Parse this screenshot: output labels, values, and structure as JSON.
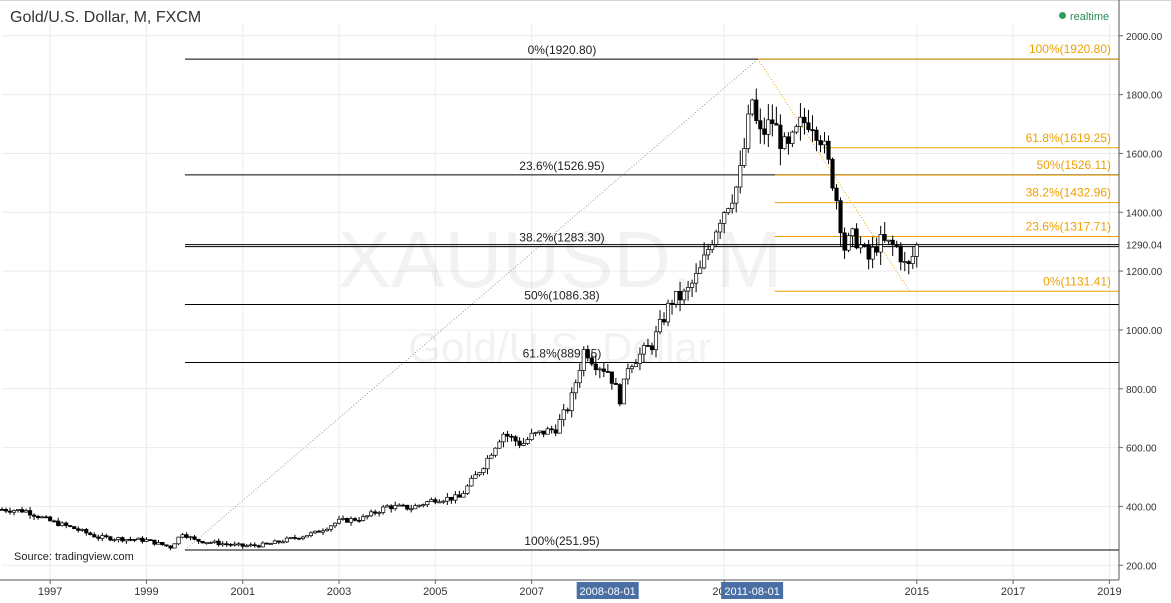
{
  "header": {
    "title": "Gold/U.S. Dollar, M, FXCM",
    "realtime_label": "realtime",
    "source": "Source: tradingview.com"
  },
  "colors": {
    "up": "#ffffff",
    "down": "#000000",
    "fib_left": "#000000",
    "fib_right": "#f0a000",
    "date_badge": "#4a6fa5",
    "price_line": "#000000",
    "realtime_dot": "#2e9e5b"
  },
  "chart_data": {
    "type": "candlestick",
    "symbol": "XAUUSD, M",
    "watermark_symbol": "XAUUSD, M",
    "watermark_name": "Gold/U.S. Dollar",
    "x_range": [
      1996.0,
      2019.2
    ],
    "ylim": [
      150,
      2040
    ],
    "y_ticks": [
      200,
      400,
      600,
      800,
      1000,
      1200,
      1400,
      1600,
      1800,
      2000
    ],
    "y_tick_labels": [
      "200.00",
      "400.00",
      "600.00",
      "800.00",
      "1000.00",
      "1200.00",
      "1400.00",
      "1600.00",
      "1800.00",
      "2000.00"
    ],
    "x_ticks": [
      {
        "t": 1997,
        "label": "1997"
      },
      {
        "t": 1999,
        "label": "1999"
      },
      {
        "t": 2001,
        "label": "2001"
      },
      {
        "t": 2003,
        "label": "2003"
      },
      {
        "t": 2005,
        "label": "2005"
      },
      {
        "t": 2007,
        "label": "2007"
      },
      {
        "t": 2011,
        "label": "2011"
      },
      {
        "t": 2015,
        "label": "2015"
      },
      {
        "t": 2017,
        "label": "2017"
      },
      {
        "t": 2019,
        "label": "2019"
      }
    ],
    "date_badges": [
      {
        "t": 2008.58,
        "label": "2008-08-01"
      },
      {
        "t": 2011.58,
        "label": "2011-08-01"
      }
    ],
    "current_price": 1290.04,
    "current_price_label": "1290.04",
    "price_points": [
      [
        1996.0,
        390
      ],
      [
        1996.5,
        385
      ],
      [
        1997.0,
        350
      ],
      [
        1997.5,
        325
      ],
      [
        1998.0,
        295
      ],
      [
        1998.5,
        290
      ],
      [
        1999.0,
        285
      ],
      [
        1999.5,
        262
      ],
      [
        1999.75,
        310
      ],
      [
        2000.0,
        285
      ],
      [
        2000.5,
        275
      ],
      [
        2001.0,
        265
      ],
      [
        2001.5,
        270
      ],
      [
        2002.0,
        290
      ],
      [
        2002.5,
        310
      ],
      [
        2003.0,
        350
      ],
      [
        2003.5,
        360
      ],
      [
        2004.0,
        400
      ],
      [
        2004.5,
        395
      ],
      [
        2005.0,
        425
      ],
      [
        2005.5,
        430
      ],
      [
        2006.0,
        540
      ],
      [
        2006.4,
        650
      ],
      [
        2006.8,
        610
      ],
      [
        2007.0,
        640
      ],
      [
        2007.5,
        665
      ],
      [
        2007.8,
        750
      ],
      [
        2008.1,
        940
      ],
      [
        2008.3,
        890
      ],
      [
        2008.6,
        860
      ],
      [
        2008.85,
        760
      ],
      [
        2009.0,
        880
      ],
      [
        2009.5,
        950
      ],
      [
        2009.9,
        1100
      ],
      [
        2010.2,
        1120
      ],
      [
        2010.5,
        1200
      ],
      [
        2010.9,
        1380
      ],
      [
        2011.3,
        1500
      ],
      [
        2011.6,
        1800
      ],
      [
        2011.7,
        1650
      ],
      [
        2012.0,
        1710
      ],
      [
        2012.3,
        1600
      ],
      [
        2012.6,
        1700
      ],
      [
        2012.8,
        1720
      ],
      [
        2013.0,
        1660
      ],
      [
        2013.3,
        1480
      ],
      [
        2013.5,
        1280
      ],
      [
        2013.7,
        1320
      ],
      [
        2014.0,
        1240
      ],
      [
        2014.2,
        1300
      ],
      [
        2014.6,
        1280
      ],
      [
        2014.8,
        1200
      ],
      [
        2015.0,
        1285
      ]
    ],
    "fib_left": {
      "start": 1999.8,
      "trend_line": [
        [
          1999.8,
          251.95
        ],
        [
          2011.7,
          1920.8
        ]
      ],
      "levels": [
        {
          "price": 1920.8,
          "label": "0%(1920.80)"
        },
        {
          "price": 1526.95,
          "label": "23.6%(1526.95)"
        },
        {
          "price": 1283.3,
          "label": "38.2%(1283.30)"
        },
        {
          "price": 1086.38,
          "label": "50%(1086.38)"
        },
        {
          "price": 889.45,
          "label": "61.8%(889.45)"
        },
        {
          "price": 251.95,
          "label": "100%(251.95)"
        }
      ]
    },
    "fib_right": {
      "start": 2011.7,
      "trend_line": [
        [
          2011.7,
          1920.8
        ],
        [
          2014.85,
          1131.41
        ]
      ],
      "levels": [
        {
          "price": 1920.8,
          "label": "100%(1920.80)",
          "start": 2011.7
        },
        {
          "price": 1619.25,
          "label": "61.8%(1619.25)",
          "start": 2013.05
        },
        {
          "price": 1526.11,
          "label": "50%(1526.11)",
          "start": 2012.05
        },
        {
          "price": 1432.96,
          "label": "38.2%(1432.96)",
          "start": 2012.05
        },
        {
          "price": 1317.71,
          "label": "23.6%(1317.71)",
          "start": 2012.05
        },
        {
          "price": 1131.41,
          "label": "0%(1131.41)",
          "start": 2012.05
        }
      ]
    }
  }
}
